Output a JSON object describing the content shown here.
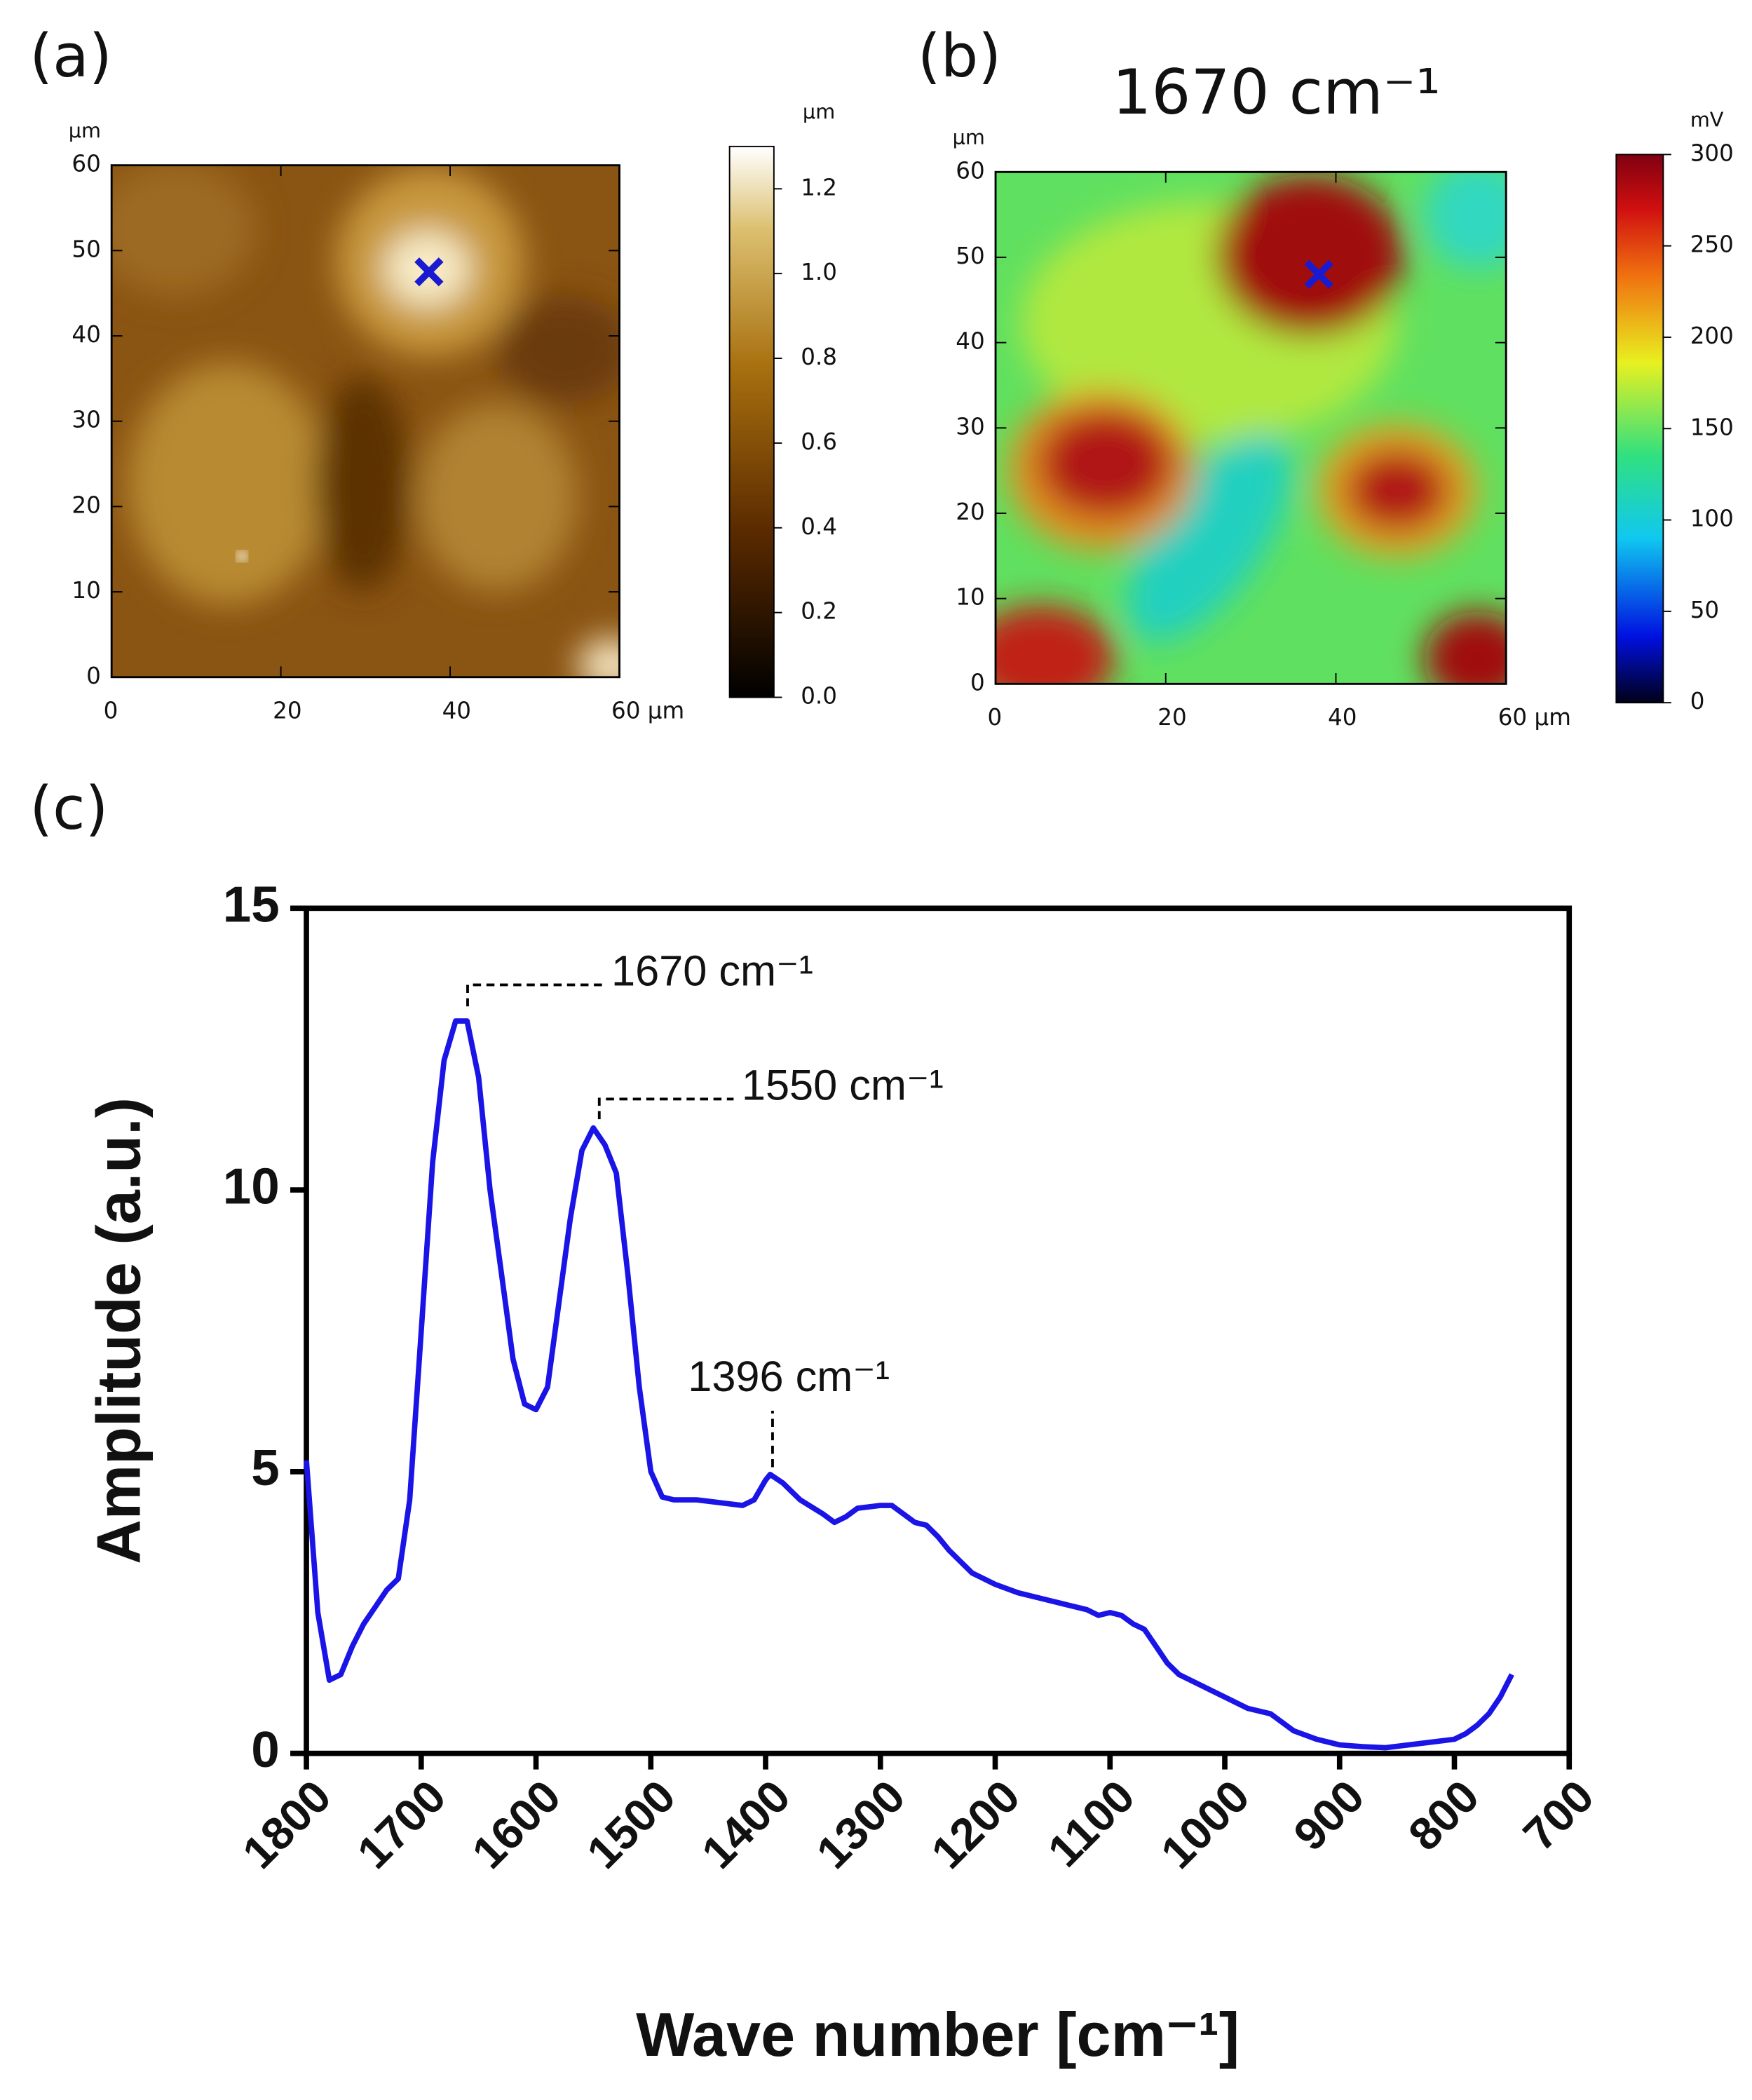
{
  "chart_data": [
    {
      "type": "image",
      "panel_label": "(a)",
      "xlim": [
        0,
        60
      ],
      "ylim": [
        0,
        60
      ],
      "xticks": [
        0,
        20,
        40,
        {
          "value": 60,
          "label": "60 µm"
        }
      ],
      "yticks": [
        0,
        10,
        20,
        30,
        40,
        50,
        60
      ],
      "y_unit": "µm",
      "marker": {
        "x": 37.5,
        "y": 47.5,
        "color": "#1a1ad0"
      },
      "colorbar": {
        "label": "µm",
        "lim": [
          0,
          1.3
        ],
        "ticks": [
          {
            "value": 0,
            "label": "0.0"
          },
          0.2,
          0.4,
          0.6,
          0.8,
          {
            "value": 1,
            "label": "1.0"
          },
          1.2
        ]
      }
    },
    {
      "type": "image",
      "panel_label": "(b)",
      "title": "1670 cm⁻¹",
      "xlim": [
        0,
        60
      ],
      "ylim": [
        0,
        60
      ],
      "xticks": [
        0,
        20,
        40,
        {
          "value": 60,
          "label": "60 µm"
        }
      ],
      "yticks": [
        0,
        10,
        20,
        30,
        40,
        50,
        60
      ],
      "y_unit": "µm",
      "marker": {
        "x": 38,
        "y": 48,
        "color": "#1a1ad0"
      },
      "colorbar": {
        "label": "mV",
        "lim": [
          0,
          300
        ],
        "ticks": [
          0,
          50,
          100,
          150,
          200,
          250,
          300
        ]
      }
    },
    {
      "type": "line",
      "panel_label": "(c)",
      "x_label": "Wave number [cm⁻¹]",
      "y_label": "Amplitude (a.u.)",
      "xlim": [
        1800,
        700
      ],
      "ylim": [
        0,
        15
      ],
      "xticks": [
        1800,
        1700,
        1600,
        1500,
        1400,
        1300,
        1200,
        1100,
        1000,
        900,
        800,
        700
      ],
      "yticks": [
        0,
        5,
        10,
        15
      ],
      "color": "#1a14e6",
      "annotations": [
        "1670 cm⁻¹",
        "1550 cm⁻¹",
        "1396 cm⁻¹"
      ],
      "x": [
        1800,
        1790,
        1780,
        1770,
        1760,
        1750,
        1740,
        1730,
        1720,
        1710,
        1700,
        1690,
        1680,
        1670,
        1660,
        1650,
        1640,
        1630,
        1620,
        1610,
        1600,
        1590,
        1580,
        1570,
        1560,
        1550,
        1540,
        1530,
        1520,
        1510,
        1500,
        1490,
        1480,
        1470,
        1460,
        1440,
        1420,
        1410,
        1400,
        1396,
        1385,
        1370,
        1350,
        1340,
        1330,
        1320,
        1300,
        1290,
        1280,
        1270,
        1260,
        1250,
        1240,
        1220,
        1200,
        1180,
        1160,
        1140,
        1120,
        1110,
        1100,
        1090,
        1080,
        1070,
        1060,
        1050,
        1040,
        1020,
        1000,
        980,
        960,
        940,
        920,
        900,
        880,
        860,
        840,
        820,
        800,
        790,
        780,
        770,
        760,
        750
      ],
      "values": [
        5.2,
        2.5,
        1.3,
        1.4,
        1.9,
        2.3,
        2.6,
        2.9,
        3.1,
        4.5,
        7.5,
        10.5,
        12.3,
        13.0,
        13.0,
        12.0,
        10.0,
        8.5,
        7.0,
        6.2,
        6.1,
        6.5,
        8.0,
        9.5,
        10.7,
        11.1,
        10.8,
        10.3,
        8.5,
        6.5,
        5.0,
        4.55,
        4.5,
        4.5,
        4.5,
        4.45,
        4.4,
        4.5,
        4.85,
        4.95,
        4.8,
        4.5,
        4.25,
        4.1,
        4.2,
        4.35,
        4.4,
        4.4,
        4.25,
        4.1,
        4.05,
        3.85,
        3.6,
        3.2,
        3.0,
        2.85,
        2.75,
        2.65,
        2.55,
        2.45,
        2.5,
        2.45,
        2.3,
        2.2,
        1.9,
        1.6,
        1.4,
        1.2,
        1.0,
        0.8,
        0.7,
        0.4,
        0.25,
        0.15,
        0.12,
        0.1,
        0.15,
        0.2,
        0.25,
        0.35,
        0.5,
        0.7,
        1.0,
        1.4
      ]
    }
  ]
}
